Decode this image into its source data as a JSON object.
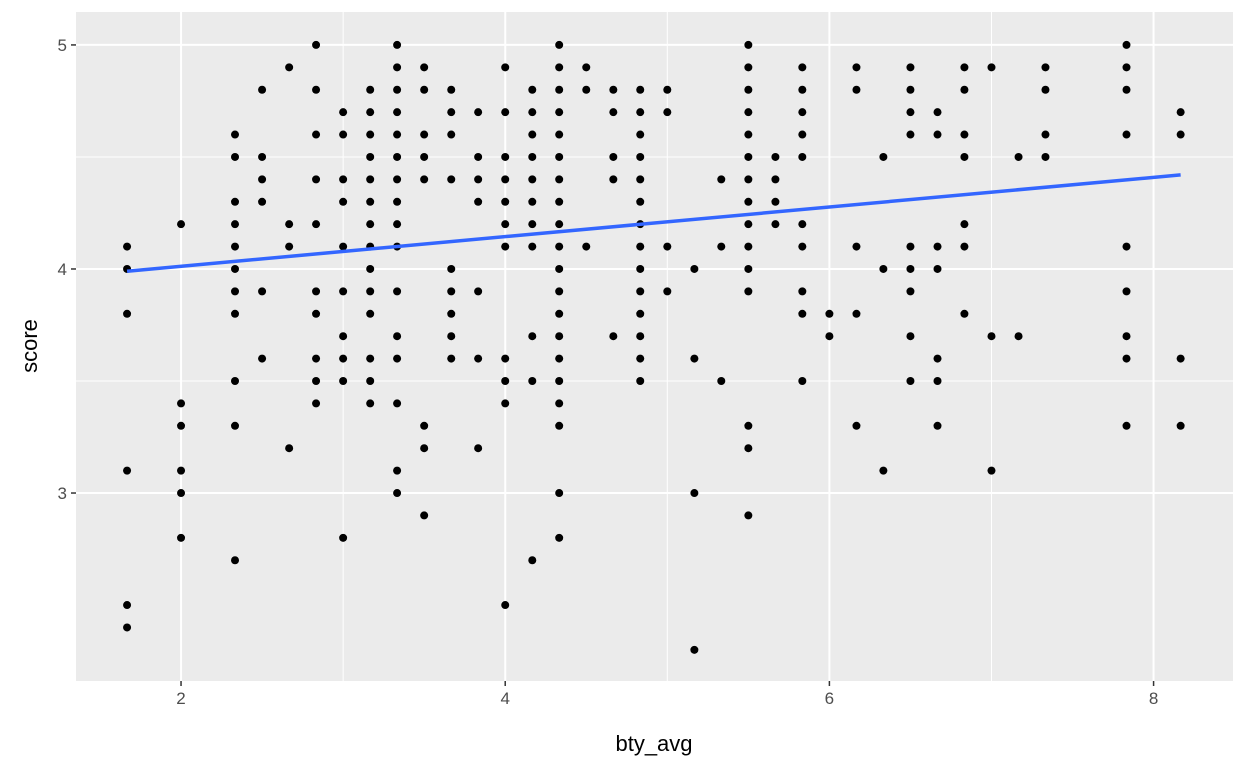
{
  "chart_data": {
    "type": "scatter",
    "x_label": "bty_avg",
    "y_label": "score",
    "xlim": [
      1.352,
      8.49
    ],
    "ylim": [
      2.161,
      5.147
    ],
    "xticks": [
      2,
      4,
      6,
      8
    ],
    "yticks": [
      3,
      4,
      5
    ],
    "grid": true,
    "series": [
      {
        "type": "scatter",
        "color": "#000000",
        "x": [
          1.667,
          1.667,
          1.667,
          1.667,
          1.667,
          1.667,
          2,
          2,
          2,
          2,
          2,
          2,
          2.333,
          2.333,
          2.333,
          2.333,
          2.333,
          2.333,
          2.333,
          2.333,
          2.333,
          2.333,
          2.333,
          2.5,
          2.5,
          2.5,
          2.5,
          2.5,
          2.5,
          2.667,
          2.667,
          2.667,
          2.667,
          2.833,
          2.833,
          2.833,
          2.833,
          2.833,
          2.833,
          2.833,
          2.833,
          2.833,
          2.833,
          3,
          3,
          3,
          3,
          3,
          3,
          3,
          3,
          3,
          3,
          3.167,
          3.167,
          3.167,
          3.167,
          3.167,
          3.167,
          3.167,
          3.167,
          3.167,
          3.167,
          3.167,
          3.167,
          3.167,
          3.167,
          3.333,
          3.333,
          3.333,
          3.333,
          3.333,
          3.333,
          3.333,
          3.333,
          3.333,
          3.333,
          3.333,
          3.333,
          3.333,
          3.333,
          3.333,
          3.333,
          3.5,
          3.5,
          3.5,
          3.5,
          3.5,
          3.5,
          3.5,
          3.5,
          3.667,
          3.667,
          3.667,
          3.667,
          3.667,
          3.667,
          3.667,
          3.667,
          3.667,
          3.833,
          3.833,
          3.833,
          3.833,
          3.833,
          3.833,
          3.833,
          4,
          4,
          4,
          4,
          4,
          4,
          4,
          4,
          4,
          4,
          4,
          4.167,
          4.167,
          4.167,
          4.167,
          4.167,
          4.167,
          4.167,
          4.167,
          4.167,
          4.167,
          4.167,
          4.333,
          4.333,
          4.333,
          4.333,
          4.333,
          4.333,
          4.333,
          4.333,
          4.333,
          4.333,
          4.333,
          4.333,
          4.333,
          4.333,
          4.333,
          4.333,
          4.333,
          4.333,
          4.333,
          4.333,
          4.5,
          4.5,
          4.5,
          4.667,
          4.667,
          4.667,
          4.667,
          4.667,
          4.833,
          4.833,
          4.833,
          4.833,
          4.833,
          4.833,
          4.833,
          4.833,
          4.833,
          4.833,
          4.833,
          4.833,
          4.833,
          4.833,
          5,
          5,
          5,
          5,
          5.167,
          5.167,
          5.167,
          5.167,
          5.333,
          5.333,
          5.333,
          5.5,
          5.5,
          5.5,
          5.5,
          5.5,
          5.5,
          5.5,
          5.5,
          5.5,
          5.5,
          5.5,
          5.5,
          5.5,
          5.5,
          5.5,
          5.667,
          5.667,
          5.667,
          5.667,
          5.833,
          5.833,
          5.833,
          5.833,
          5.833,
          5.833,
          5.833,
          5.833,
          5.833,
          5.833,
          6,
          6,
          6.167,
          6.167,
          6.167,
          6.167,
          6.167,
          6.333,
          6.333,
          6.333,
          6.5,
          6.5,
          6.5,
          6.5,
          6.5,
          6.5,
          6.5,
          6.5,
          6.5,
          6.667,
          6.667,
          6.667,
          6.667,
          6.667,
          6.667,
          6.667,
          6.833,
          6.833,
          6.833,
          6.833,
          6.833,
          6.833,
          6.833,
          7,
          7,
          7,
          7.167,
          7.167,
          7.333,
          7.333,
          7.333,
          7.333,
          7.833,
          7.833,
          7.833,
          7.833,
          7.833,
          7.833,
          7.833,
          7.833,
          7.833,
          8.167,
          8.167,
          8.167,
          8.167
        ],
        "values": [
          4.1,
          4.0,
          3.8,
          3.1,
          2.5,
          2.4,
          4.2,
          3.4,
          3.3,
          3.1,
          3.0,
          2.8,
          4.6,
          4.5,
          4.3,
          4.2,
          4.1,
          4.0,
          3.9,
          3.8,
          3.5,
          3.3,
          2.7,
          4.8,
          4.5,
          4.4,
          4.3,
          3.9,
          3.6,
          4.9,
          4.2,
          4.1,
          3.2,
          5.0,
          4.8,
          4.6,
          4.4,
          4.2,
          3.9,
          3.8,
          3.6,
          3.5,
          3.4,
          4.7,
          4.6,
          4.4,
          4.3,
          4.1,
          3.9,
          3.7,
          3.6,
          3.5,
          2.8,
          4.8,
          4.7,
          4.6,
          4.5,
          4.4,
          4.3,
          4.2,
          4.1,
          4.0,
          3.9,
          3.8,
          3.6,
          3.5,
          3.4,
          5.0,
          4.9,
          4.8,
          4.7,
          4.6,
          4.5,
          4.4,
          4.3,
          4.2,
          4.1,
          3.9,
          3.7,
          3.6,
          3.4,
          3.1,
          3.0,
          4.9,
          4.8,
          4.6,
          4.5,
          4.4,
          3.3,
          3.2,
          2.9,
          4.8,
          4.7,
          4.6,
          4.4,
          4.0,
          3.9,
          3.8,
          3.7,
          3.6,
          4.7,
          4.5,
          4.4,
          4.3,
          3.9,
          3.6,
          3.2,
          4.9,
          4.7,
          4.5,
          4.4,
          4.3,
          4.2,
          4.1,
          3.6,
          3.5,
          3.4,
          2.5,
          4.8,
          4.7,
          4.6,
          4.5,
          4.4,
          4.3,
          4.2,
          4.1,
          3.7,
          3.5,
          2.7,
          5.0,
          4.9,
          4.8,
          4.7,
          4.6,
          4.5,
          4.4,
          4.3,
          4.2,
          4.1,
          4.0,
          3.9,
          3.8,
          3.7,
          3.6,
          3.5,
          3.4,
          3.3,
          3.0,
          2.8,
          4.9,
          4.8,
          4.1,
          4.8,
          4.7,
          4.5,
          4.4,
          3.7,
          4.8,
          4.7,
          4.6,
          4.5,
          4.4,
          4.3,
          4.2,
          4.1,
          4.0,
          3.9,
          3.8,
          3.7,
          3.6,
          3.5,
          4.8,
          4.7,
          4.1,
          3.9,
          4.0,
          3.6,
          3.0,
          2.3,
          4.4,
          4.1,
          3.5,
          5.0,
          4.9,
          4.8,
          4.7,
          4.6,
          4.5,
          4.4,
          4.3,
          4.2,
          4.1,
          4.0,
          3.9,
          3.3,
          3.2,
          2.9,
          4.5,
          4.4,
          4.3,
          4.2,
          4.9,
          4.8,
          4.7,
          4.6,
          4.5,
          4.2,
          4.1,
          3.9,
          3.8,
          3.5,
          3.8,
          3.7,
          4.9,
          4.8,
          4.1,
          3.8,
          3.3,
          4.5,
          4.0,
          3.1,
          4.9,
          4.8,
          4.7,
          4.6,
          4.1,
          4.0,
          3.9,
          3.7,
          3.5,
          4.7,
          4.6,
          4.1,
          4.0,
          3.6,
          3.5,
          3.3,
          4.9,
          4.8,
          4.6,
          4.5,
          4.2,
          4.1,
          3.8,
          4.9,
          3.7,
          3.1,
          4.5,
          3.7,
          4.9,
          4.8,
          4.6,
          4.5,
          5.0,
          4.9,
          4.8,
          4.6,
          4.1,
          3.9,
          3.7,
          3.6,
          3.3,
          4.7,
          4.6,
          3.6,
          3.3
        ]
      },
      {
        "type": "line",
        "color": "#3366ff",
        "x": [
          1.667,
          8.167
        ],
        "values": [
          3.99,
          4.42
        ]
      }
    ]
  }
}
